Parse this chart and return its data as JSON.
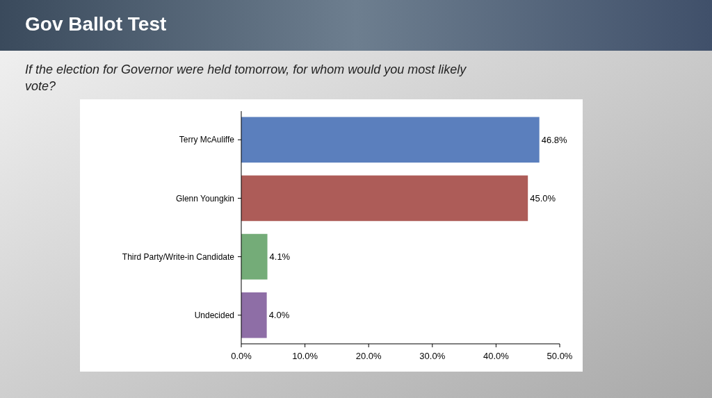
{
  "chart_data": {
    "type": "bar",
    "orientation": "horizontal",
    "title": "Gov Ballot Test",
    "subtitle": "If the election for Governor were held tomorrow, for whom would you most likely vote?",
    "categories": [
      "Terry McAuliffe",
      "Glenn Youngkin",
      "Third Party/Write-in Candidate",
      "Undecided"
    ],
    "values": [
      46.8,
      45.0,
      4.1,
      4.0
    ],
    "colors": [
      "#5b7fbd",
      "#ad5c58",
      "#74ac78",
      "#8e6ea6"
    ],
    "value_labels": [
      "46.8%",
      "45.0%",
      "4.1%",
      "4.0%"
    ],
    "xlim": [
      0,
      50
    ],
    "xticks": [
      {
        "value": 0,
        "label": "0.0%"
      },
      {
        "value": 10,
        "label": "10.0%"
      },
      {
        "value": 20,
        "label": "20.0%"
      },
      {
        "value": 30,
        "label": "30.0%"
      },
      {
        "value": 40,
        "label": "40.0%"
      },
      {
        "value": 50,
        "label": "50.0%"
      }
    ],
    "grid": false
  }
}
